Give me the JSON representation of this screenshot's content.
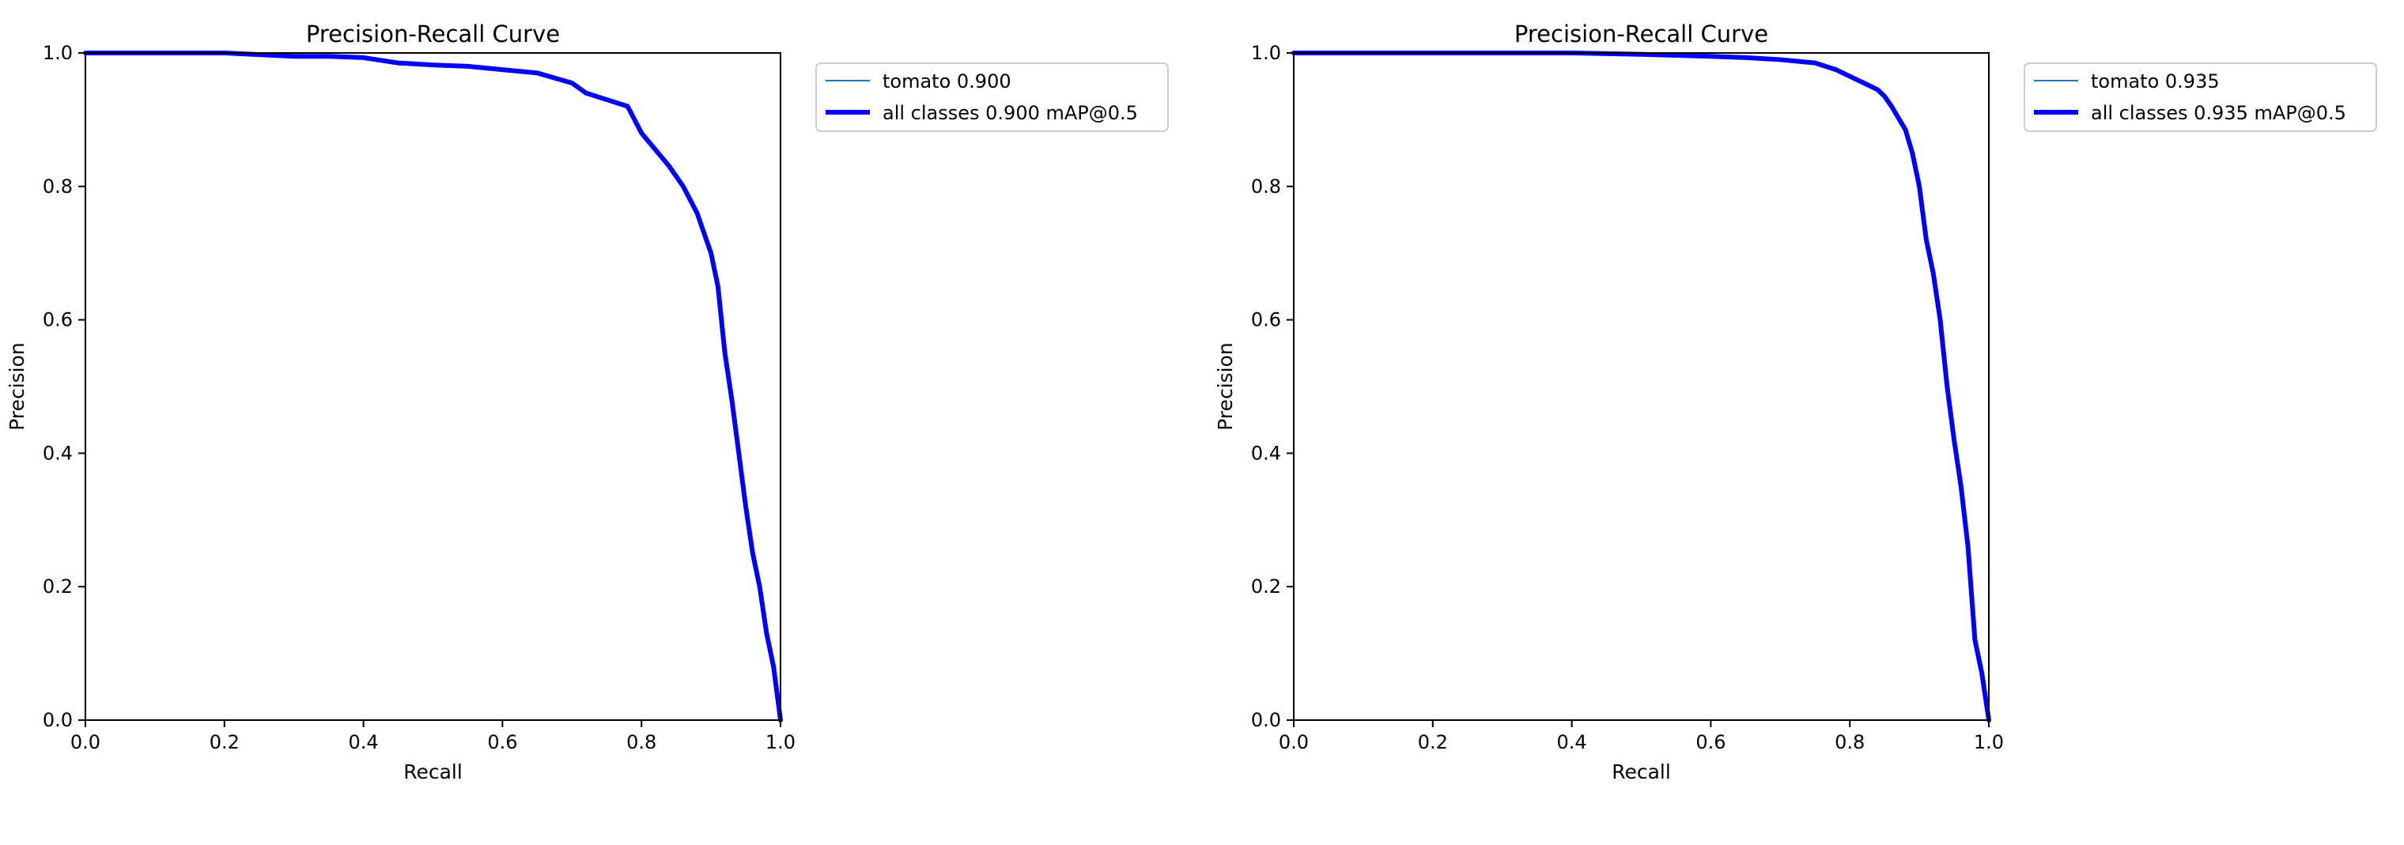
{
  "chart_data": [
    {
      "type": "line",
      "title": "Precision-Recall Curve",
      "xlabel": "Recall",
      "ylabel": "Precision",
      "xlim": [
        0,
        1
      ],
      "ylim": [
        0,
        1
      ],
      "xticks": [
        "0.0",
        "0.2",
        "0.4",
        "0.6",
        "0.8",
        "1.0"
      ],
      "yticks": [
        "0.0",
        "0.2",
        "0.4",
        "0.6",
        "0.8",
        "1.0"
      ],
      "grid": false,
      "legend_position": "outside-top-right",
      "series": [
        {
          "name": "tomato 0.900",
          "color": "#1f77b4",
          "x": [
            0,
            0.1,
            0.2,
            0.3,
            0.35,
            0.4,
            0.45,
            0.5,
            0.55,
            0.6,
            0.65,
            0.7,
            0.72,
            0.75,
            0.78,
            0.8,
            0.82,
            0.84,
            0.86,
            0.88,
            0.9,
            0.91,
            0.92,
            0.93,
            0.94,
            0.95,
            0.96,
            0.97,
            0.98,
            0.99,
            1.0
          ],
          "y": [
            1.0,
            1.0,
            1.0,
            0.995,
            0.995,
            0.993,
            0.985,
            0.982,
            0.98,
            0.975,
            0.97,
            0.955,
            0.94,
            0.93,
            0.92,
            0.88,
            0.855,
            0.83,
            0.8,
            0.76,
            0.7,
            0.65,
            0.55,
            0.48,
            0.4,
            0.32,
            0.25,
            0.2,
            0.13,
            0.08,
            0.0
          ]
        },
        {
          "name": "all classes 0.900 mAP@0.5",
          "color": "#0000ff",
          "x": [
            0,
            0.1,
            0.2,
            0.3,
            0.35,
            0.4,
            0.45,
            0.5,
            0.55,
            0.6,
            0.65,
            0.7,
            0.72,
            0.75,
            0.78,
            0.8,
            0.82,
            0.84,
            0.86,
            0.88,
            0.9,
            0.91,
            0.92,
            0.93,
            0.94,
            0.95,
            0.96,
            0.97,
            0.98,
            0.99,
            1.0
          ],
          "y": [
            1.0,
            1.0,
            1.0,
            0.995,
            0.995,
            0.993,
            0.985,
            0.982,
            0.98,
            0.975,
            0.97,
            0.955,
            0.94,
            0.93,
            0.92,
            0.88,
            0.855,
            0.83,
            0.8,
            0.76,
            0.7,
            0.65,
            0.55,
            0.48,
            0.4,
            0.32,
            0.25,
            0.2,
            0.13,
            0.08,
            0.0
          ]
        }
      ]
    },
    {
      "type": "line",
      "title": "Precision-Recall Curve",
      "xlabel": "Recall",
      "ylabel": "Precision",
      "xlim": [
        0,
        1
      ],
      "ylim": [
        0,
        1
      ],
      "xticks": [
        "0.0",
        "0.2",
        "0.4",
        "0.6",
        "0.8",
        "1.0"
      ],
      "yticks": [
        "0.0",
        "0.2",
        "0.4",
        "0.6",
        "0.8",
        "1.0"
      ],
      "grid": false,
      "legend_position": "outside-top-right",
      "series": [
        {
          "name": "tomato 0.935",
          "color": "#1f77b4",
          "x": [
            0,
            0.2,
            0.4,
            0.5,
            0.6,
            0.65,
            0.7,
            0.75,
            0.78,
            0.8,
            0.82,
            0.84,
            0.85,
            0.86,
            0.88,
            0.89,
            0.9,
            0.91,
            0.92,
            0.93,
            0.94,
            0.95,
            0.96,
            0.97,
            0.98,
            0.99,
            1.0
          ],
          "y": [
            1.0,
            1.0,
            1.0,
            0.998,
            0.995,
            0.993,
            0.99,
            0.985,
            0.975,
            0.965,
            0.955,
            0.945,
            0.935,
            0.92,
            0.885,
            0.85,
            0.8,
            0.72,
            0.67,
            0.6,
            0.5,
            0.42,
            0.35,
            0.26,
            0.12,
            0.07,
            0.0
          ]
        },
        {
          "name": "all classes 0.935 mAP@0.5",
          "color": "#0000ff",
          "x": [
            0,
            0.2,
            0.4,
            0.5,
            0.6,
            0.65,
            0.7,
            0.75,
            0.78,
            0.8,
            0.82,
            0.84,
            0.85,
            0.86,
            0.88,
            0.89,
            0.9,
            0.91,
            0.92,
            0.93,
            0.94,
            0.95,
            0.96,
            0.97,
            0.98,
            0.99,
            1.0
          ],
          "y": [
            1.0,
            1.0,
            1.0,
            0.998,
            0.995,
            0.993,
            0.99,
            0.985,
            0.975,
            0.965,
            0.955,
            0.945,
            0.935,
            0.92,
            0.885,
            0.85,
            0.8,
            0.72,
            0.67,
            0.6,
            0.5,
            0.42,
            0.35,
            0.26,
            0.12,
            0.07,
            0.0
          ]
        }
      ]
    }
  ]
}
